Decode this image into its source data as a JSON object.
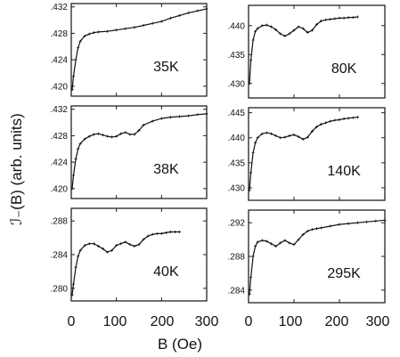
{
  "figure": {
    "xlabel": "B (Oe)",
    "ylabel": "ℐ₋(B)  (arb. units)"
  },
  "chart_data": [
    {
      "type": "line",
      "label": "35K",
      "xlim": [
        0,
        300
      ],
      "ylim": [
        0.4185,
        0.4325
      ],
      "yticks": [
        ".420",
        ".424",
        ".428",
        ".432"
      ],
      "x": [
        2,
        5,
        10,
        15,
        20,
        30,
        40,
        50,
        60,
        80,
        100,
        120,
        140,
        160,
        180,
        200,
        220,
        240,
        260,
        280,
        300
      ],
      "y": [
        0.4195,
        0.4215,
        0.424,
        0.4258,
        0.4268,
        0.4276,
        0.4279,
        0.4281,
        0.4282,
        0.4283,
        0.4285,
        0.4287,
        0.4289,
        0.4292,
        0.4295,
        0.4298,
        0.4303,
        0.4307,
        0.4311,
        0.4314,
        0.4317
      ]
    },
    {
      "type": "line",
      "label": "80K",
      "xlim": [
        0,
        300
      ],
      "ylim": [
        0.4275,
        0.4435
      ],
      "yticks": [
        ".430",
        ".435",
        ".440"
      ],
      "x": [
        2,
        5,
        10,
        15,
        20,
        30,
        40,
        50,
        60,
        70,
        80,
        90,
        100,
        110,
        120,
        130,
        140,
        150,
        160,
        170,
        180,
        190,
        200,
        210,
        220,
        230,
        240
      ],
      "y": [
        0.43,
        0.434,
        0.4375,
        0.439,
        0.4395,
        0.44,
        0.4401,
        0.4398,
        0.4393,
        0.4386,
        0.4382,
        0.4386,
        0.4392,
        0.4398,
        0.4395,
        0.4388,
        0.4392,
        0.4402,
        0.4408,
        0.441,
        0.4411,
        0.4412,
        0.4413,
        0.4413,
        0.4414,
        0.4414,
        0.4415
      ]
    },
    {
      "type": "line",
      "label": "38K",
      "xlim": [
        0,
        300
      ],
      "ylim": [
        0.4185,
        0.4325
      ],
      "yticks": [
        ".420",
        ".424",
        ".428",
        ".432"
      ],
      "x": [
        2,
        5,
        10,
        15,
        20,
        30,
        40,
        50,
        60,
        70,
        80,
        90,
        100,
        110,
        120,
        130,
        140,
        150,
        160,
        180,
        200,
        220,
        240,
        260,
        280,
        300
      ],
      "y": [
        0.42,
        0.422,
        0.4245,
        0.426,
        0.4268,
        0.4275,
        0.4279,
        0.4282,
        0.4283,
        0.4281,
        0.4279,
        0.4278,
        0.4279,
        0.4283,
        0.4285,
        0.4282,
        0.4282,
        0.4288,
        0.4296,
        0.4302,
        0.4306,
        0.4308,
        0.4309,
        0.431,
        0.4312,
        0.4313
      ]
    },
    {
      "type": "line",
      "label": "140K",
      "xlim": [
        0,
        300
      ],
      "ylim": [
        0.4275,
        0.446
      ],
      "yticks": [
        ".430",
        ".435",
        ".440",
        ".445"
      ],
      "x": [
        2,
        5,
        10,
        15,
        20,
        30,
        40,
        50,
        60,
        70,
        80,
        90,
        100,
        110,
        120,
        130,
        140,
        150,
        160,
        170,
        180,
        190,
        200,
        210,
        220,
        230,
        240
      ],
      "y": [
        0.4295,
        0.433,
        0.437,
        0.439,
        0.44,
        0.4408,
        0.441,
        0.4408,
        0.4404,
        0.44,
        0.4401,
        0.4404,
        0.4406,
        0.4402,
        0.4397,
        0.4401,
        0.4413,
        0.4422,
        0.4427,
        0.443,
        0.4433,
        0.4435,
        0.4436,
        0.4438,
        0.4439,
        0.444,
        0.4441
      ]
    },
    {
      "type": "line",
      "label": "40K",
      "xlim": [
        0,
        300
      ],
      "ylim": [
        0.2785,
        0.2895
      ],
      "yticks": [
        ".280",
        ".284",
        ".288"
      ],
      "x": [
        2,
        5,
        10,
        15,
        20,
        30,
        40,
        50,
        60,
        70,
        80,
        90,
        100,
        110,
        120,
        130,
        140,
        150,
        160,
        170,
        180,
        190,
        200,
        210,
        220,
        230,
        240
      ],
      "y": [
        0.2792,
        0.2805,
        0.2825,
        0.2838,
        0.2845,
        0.2851,
        0.2853,
        0.2853,
        0.285,
        0.2847,
        0.2843,
        0.2845,
        0.2851,
        0.2853,
        0.2855,
        0.2852,
        0.285,
        0.2852,
        0.2858,
        0.2862,
        0.2864,
        0.2865,
        0.2865,
        0.2866,
        0.2867,
        0.2867,
        0.2867
      ]
    },
    {
      "type": "line",
      "label": "295K",
      "xlim": [
        0,
        300
      ],
      "ylim": [
        0.2825,
        0.2935
      ],
      "yticks": [
        ".284",
        ".288",
        ".292"
      ],
      "x": [
        2,
        5,
        10,
        15,
        20,
        30,
        40,
        50,
        60,
        70,
        80,
        90,
        100,
        110,
        120,
        130,
        140,
        150,
        160,
        180,
        200,
        220,
        240,
        260,
        280,
        300
      ],
      "y": [
        0.2835,
        0.2855,
        0.288,
        0.2892,
        0.2897,
        0.2899,
        0.2898,
        0.2895,
        0.2892,
        0.2896,
        0.2899,
        0.2896,
        0.2894,
        0.29,
        0.2906,
        0.291,
        0.2912,
        0.2913,
        0.2914,
        0.2916,
        0.2918,
        0.2919,
        0.292,
        0.2921,
        0.2922,
        0.2923
      ]
    }
  ],
  "xaxis": {
    "ticks": [
      "0",
      "100",
      "200",
      "300"
    ]
  }
}
